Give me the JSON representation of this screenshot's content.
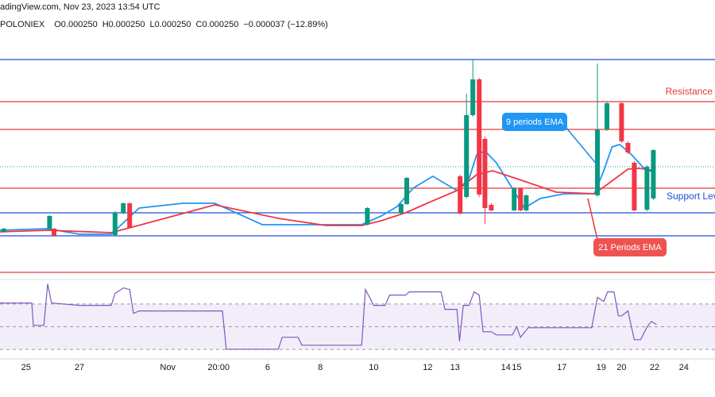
{
  "chart_data": [
    {
      "type": "candlestick",
      "title": "adingView.com, Nov 23, 2023 13:54 UTC",
      "subtitle": [
        "POLONIEX",
        "O0.000250",
        "H0.000250",
        "L0.000250",
        "C0.000250",
        "−0.000037 (−12.89%)"
      ],
      "up_color": "#089981",
      "down_color": "#f23645",
      "xlim": [
        0,
        112.5
      ],
      "xticks": [
        {
          "value": 4.1,
          "label": "25"
        },
        {
          "value": 12.5,
          "label": "27"
        },
        {
          "value": 26.4,
          "label": "Nov"
        },
        {
          "value": 34.4,
          "label": "20:00"
        },
        {
          "value": 42.1,
          "label": "6"
        },
        {
          "value": 50.4,
          "label": "8"
        },
        {
          "value": 58.8,
          "label": "10"
        },
        {
          "value": 67.3,
          "label": "12"
        },
        {
          "value": 71.6,
          "label": "13"
        },
        {
          "value": 79.6,
          "label": "14"
        },
        {
          "value": 81.3,
          "label": "15"
        },
        {
          "value": 88.4,
          "label": "17"
        },
        {
          "value": 94.6,
          "label": "19"
        },
        {
          "value": 97.8,
          "label": "20"
        },
        {
          "value": 103,
          "label": "22"
        },
        {
          "value": 107.6,
          "label": "24"
        }
      ],
      "ylim": [
        0.00018,
        0.00034
      ],
      "x": [
        0.6,
        7.8,
        8.5,
        18.1,
        19.4,
        20.4,
        57.8,
        63.1,
        64,
        72.4,
        73.4,
        74.4,
        75.4,
        76.3,
        77.3,
        80.9,
        81.9,
        82.8,
        94,
        95.5,
        97.8,
        98.8,
        99.8,
        101.8,
        102.8
      ],
      "open": [
        0.000209,
        0.000211,
        0.000211,
        0.000207,
        0.000221,
        0.000227,
        0.0002135,
        0.000221,
        0.0002265,
        0.000244,
        0.000231,
        0.0002825,
        0.000305,
        0.0002675,
        0.000226,
        0.0002225,
        0.0002365,
        0.0002225,
        0.000232,
        0.0002735,
        0.00029,
        0.000265,
        0.0002525,
        0.000223,
        0.00023
      ],
      "high": [
        0.0002115,
        0.0002195,
        0.0002115,
        0.000222,
        0.0002275,
        0.0002275,
        0.0002245,
        0.000227,
        0.0002435,
        0.000245,
        0.000296,
        0.0003175,
        0.000306,
        0.000269,
        0.000227,
        0.000237,
        0.000237,
        0.0002325,
        0.000315,
        0.000291,
        0.000291,
        0.000266,
        0.0002535,
        0.000251,
        0.000261
      ],
      "low": [
        0.0002085,
        0.0002105,
        0.000206,
        0.0002065,
        0.00022,
        0.000211,
        0.000213,
        0.00022,
        0.000226,
        0.00022,
        0.00023,
        0.0002815,
        0.000231,
        0.000214,
        0.000222,
        0.000222,
        0.000222,
        0.000222,
        0.000231,
        0.0002725,
        0.000265,
        0.000258,
        0.000222,
        0.000222,
        0.000229
      ],
      "close": [
        0.000211,
        0.000219,
        0.0002065,
        0.000221,
        0.000227,
        0.0002115,
        0.000224,
        0.0002265,
        0.000243,
        0.0002205,
        0.0002825,
        0.000305,
        0.0002325,
        0.000224,
        0.0002225,
        0.0002365,
        0.0002225,
        0.000232,
        0.0002735,
        0.00029,
        0.000266,
        0.000259,
        0.0002225,
        0.00025,
        0.0002605
      ],
      "series": [
        {
          "color": "#2196f3",
          "x": [
            0,
            7.5,
            12.5,
            17.5,
            21.9,
            28.8,
            33.8,
            41.3,
            56.9,
            60,
            62.5,
            65,
            68.1,
            71.9,
            73.8,
            75,
            76.3,
            78.1,
            80.6,
            82.5,
            85,
            88.8,
            93.5,
            95,
            96.3,
            97.5,
            99.4,
            101.3,
            103.1
          ],
          "values": [
            0.00021,
            0.000211,
            0.0002075,
            0.0002075,
            0.000224,
            0.000227,
            0.000227,
            0.0002135,
            0.0002135,
            0.000219,
            0.000225,
            0.0002365,
            0.000244,
            0.000235,
            0.0002425,
            0.0002575,
            0.00026,
            0.0002525,
            0.0002365,
            0.000224,
            0.00023,
            0.000233,
            0.000233,
            0.0002475,
            0.0002625,
            0.000264,
            0.0002575,
            0.000249,
            0.000246
          ]
        },
        {
          "color": "#f23645",
          "x": [
            0,
            7.5,
            17.5,
            21.3,
            33.8,
            43.8,
            51.3,
            56.9,
            60,
            63.8,
            67.5,
            71.9,
            75,
            77.5,
            81.3,
            87.5,
            93.5,
            95.6,
            98.8,
            100.6,
            103.1
          ],
          "values": [
            0.000209,
            0.00021,
            0.0002085,
            0.0002125,
            0.000226,
            0.0002175,
            0.000213,
            0.000213,
            0.000216,
            0.000221,
            0.0002275,
            0.000235,
            0.000245,
            0.0002475,
            0.0002425,
            0.000234,
            0.000233,
            0.000239,
            0.0002485,
            0.000249,
            0.0002475
          ]
        }
      ],
      "levels": [
        {
          "value": 0.0003175,
          "color": "#1e4fd8"
        },
        {
          "value": 0.000291,
          "color": "#e53935"
        },
        {
          "value": 0.0002735,
          "color": "#e53935"
        },
        {
          "value": 0.0002365,
          "color": "#e53935"
        },
        {
          "value": 0.000221,
          "color": "#1e4fd8"
        },
        {
          "value": 0.0002065,
          "color": "#1e4fd8"
        },
        {
          "value": 0.0001835,
          "color": "#e53935"
        }
      ],
      "price_line": 0.00025,
      "annotations": [
        "Resistance",
        "Support Lev",
        "9 periods EMA",
        "21 Periods EMA"
      ]
    },
    {
      "type": "line",
      "color": "#7e57c2",
      "ylim": [
        0,
        100
      ],
      "band": [
        30,
        70
      ],
      "hlines": [
        30,
        50,
        70
      ],
      "x": [
        0,
        5,
        5.25,
        6.9,
        7.5,
        8.1,
        12.5,
        17.5,
        18.1,
        19.4,
        20.4,
        21,
        21.9,
        35,
        35.6,
        43.8,
        44.4,
        46.9,
        47.5,
        56.9,
        57.5,
        58.8,
        60.6,
        61.3,
        63.8,
        64.4,
        69.4,
        70,
        71.9,
        72.3,
        72.9,
        73.8,
        74.6,
        75.4,
        76,
        77.3,
        78.1,
        80.6,
        81.3,
        81.9,
        83.1,
        93.1,
        94,
        95,
        95.6,
        96.6,
        97.3,
        97.8,
        98.8,
        99.8,
        100.8,
        101.8,
        102.5,
        103.3
      ],
      "values": [
        70.9,
        70.9,
        51.2,
        51.2,
        87.7,
        70.9,
        68.8,
        68.8,
        79.3,
        84.2,
        82.8,
        61.8,
        63.9,
        63.9,
        30.2,
        30.2,
        40.7,
        40.7,
        33.7,
        33.7,
        82.8,
        68.8,
        68.8,
        77.9,
        77.9,
        80.7,
        80.7,
        65.3,
        65.3,
        37.2,
        68.8,
        68.8,
        80.7,
        77.9,
        45.6,
        45.6,
        42.8,
        42.8,
        49.8,
        40.7,
        49.1,
        49.1,
        75.8,
        72.3,
        80.7,
        80.7,
        59.6,
        59.6,
        63.9,
        38.6,
        38.6,
        49.8,
        54.7,
        51.9
      ]
    }
  ]
}
